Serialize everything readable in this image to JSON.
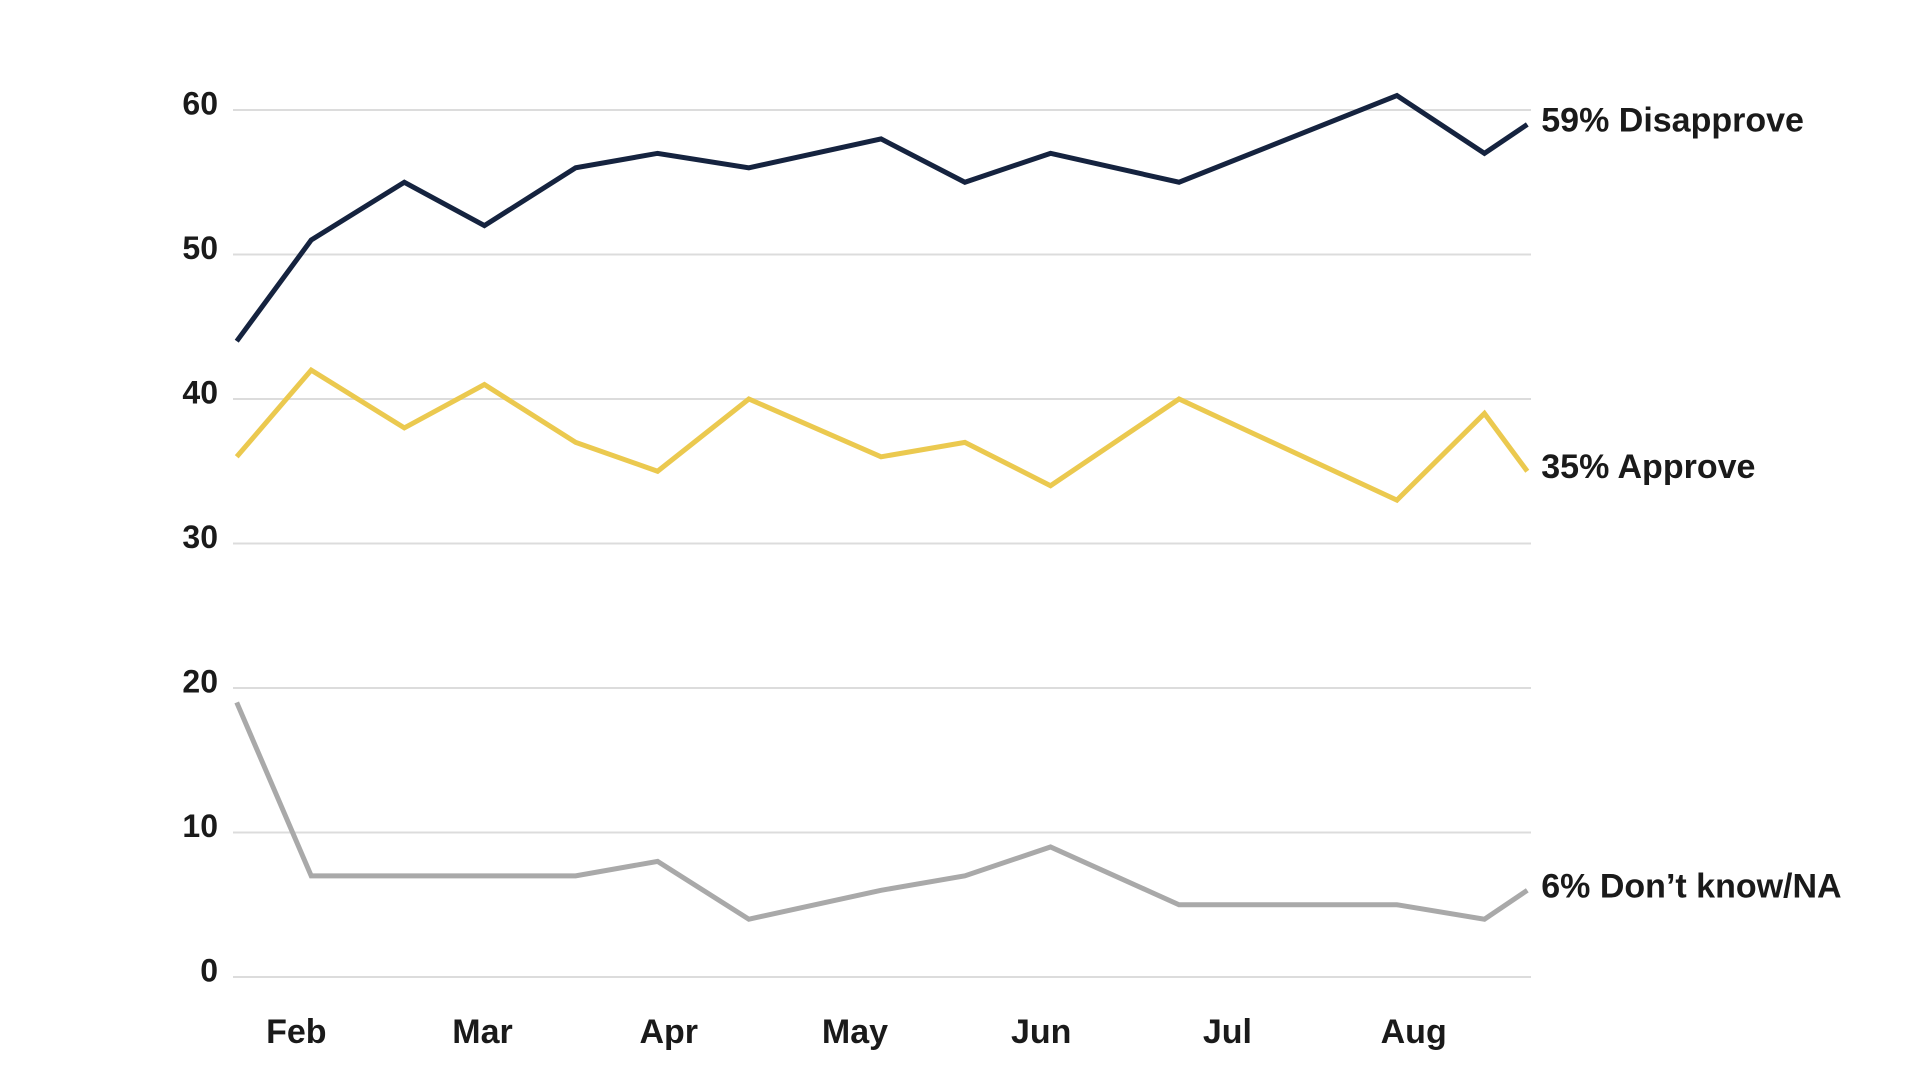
{
  "chart_data": {
    "type": "line",
    "x": [
      1.68,
      2.08,
      2.58,
      3.01,
      3.5,
      3.94,
      4.43,
      5.14,
      5.59,
      6.05,
      6.74,
      7.91,
      8.38,
      8.61
    ],
    "xlim": [
      1.66,
      8.63
    ],
    "xticks": [
      {
        "value": 2,
        "label": "Feb"
      },
      {
        "value": 3,
        "label": "Mar"
      },
      {
        "value": 4,
        "label": "Apr"
      },
      {
        "value": 5,
        "label": "May"
      },
      {
        "value": 6,
        "label": "Jun"
      },
      {
        "value": 7,
        "label": "Jul"
      },
      {
        "value": 8,
        "label": "Aug"
      }
    ],
    "ylim": [
      0,
      60
    ],
    "yticks": [
      0,
      10,
      20,
      30,
      40,
      50,
      60
    ],
    "grid": true,
    "series": [
      {
        "name": "59% Disapprove",
        "color": "#15233f",
        "values": [
          44,
          51,
          55,
          52,
          56,
          57,
          56,
          58,
          55,
          57,
          55,
          61,
          57,
          59
        ]
      },
      {
        "name": "35% Approve",
        "color": "#ebc94f",
        "values": [
          36,
          42,
          38,
          41,
          37,
          35,
          40,
          36,
          37,
          34,
          40,
          33,
          39,
          35
        ]
      },
      {
        "name": "6% Don’t know/NA",
        "color": "#a9a9a9",
        "values": [
          19,
          7,
          7,
          7,
          7,
          8,
          4,
          6,
          7,
          9,
          5,
          5,
          4,
          6
        ]
      }
    ]
  }
}
